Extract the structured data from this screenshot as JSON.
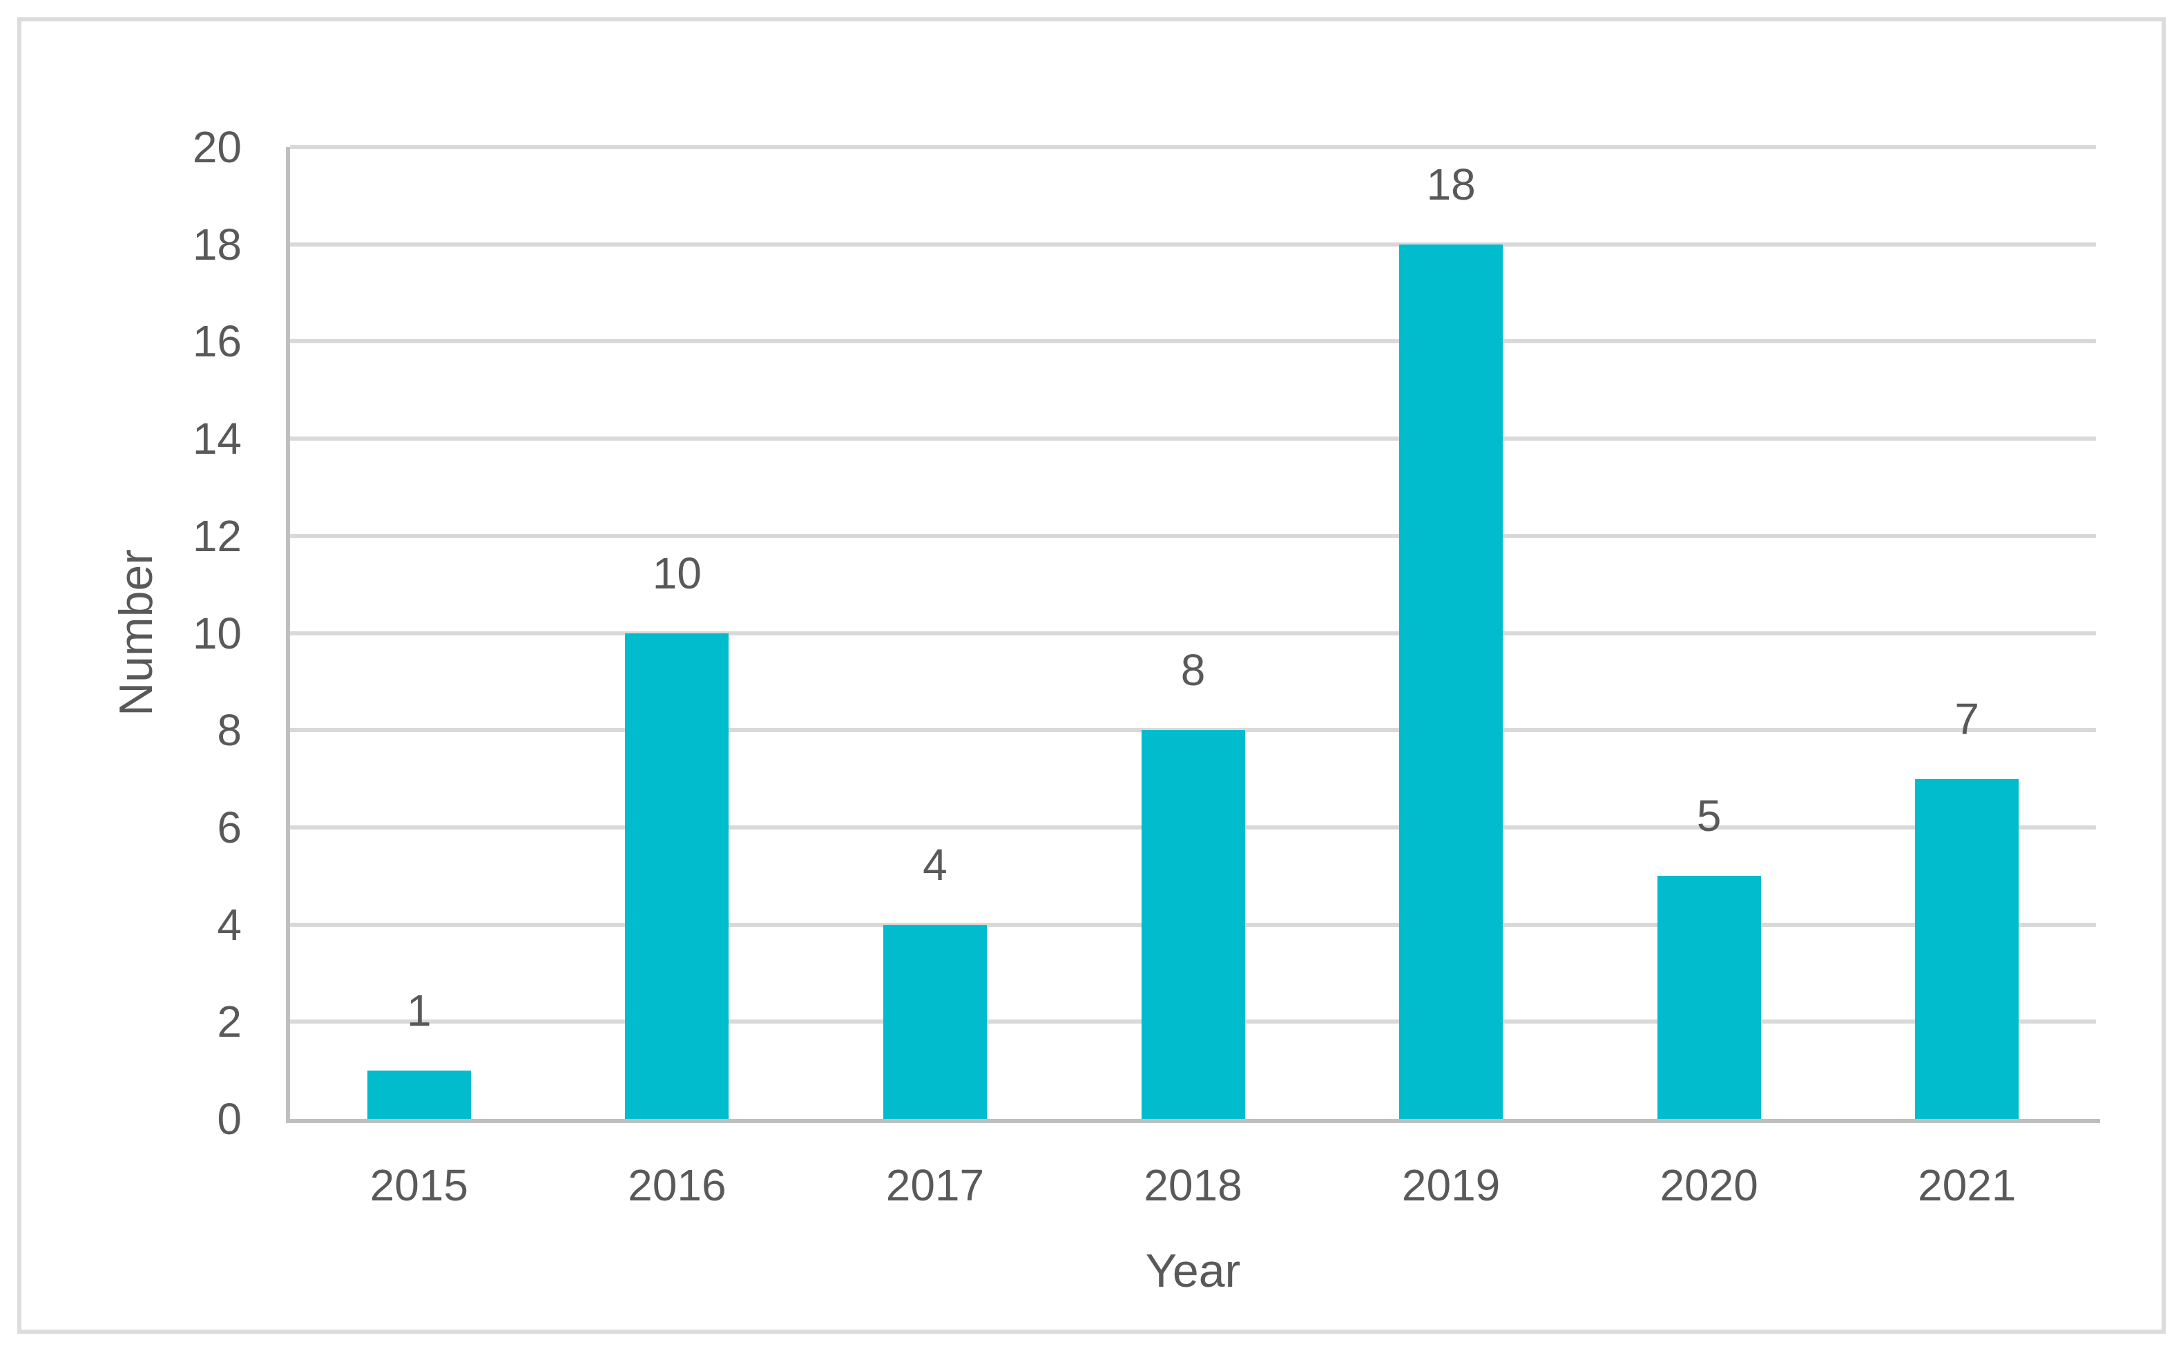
{
  "chart_data": {
    "type": "bar",
    "title": "",
    "categories": [
      "2015",
      "2016",
      "2017",
      "2018",
      "2019",
      "2020",
      "2021"
    ],
    "values": [
      1,
      10,
      4,
      8,
      18,
      5,
      7
    ],
    "data_labels": [
      "1",
      "10",
      "4",
      "8",
      "18",
      "5",
      "7"
    ],
    "xlabel": "Year",
    "ylabel": "Number",
    "ylim": [
      0,
      20
    ],
    "yticks": [
      "0",
      "2",
      "4",
      "6",
      "8",
      "10",
      "12",
      "14",
      "16",
      "18",
      "20"
    ],
    "grid": true,
    "legend": false
  },
  "theme": {
    "bar_color": "#00bccd",
    "gridline_color": "#d9d9d9",
    "axis_line_color": "#bfbfbf",
    "text_color": "#595959",
    "frame_border_color": "#dcdcdc",
    "background": "#ffffff"
  }
}
